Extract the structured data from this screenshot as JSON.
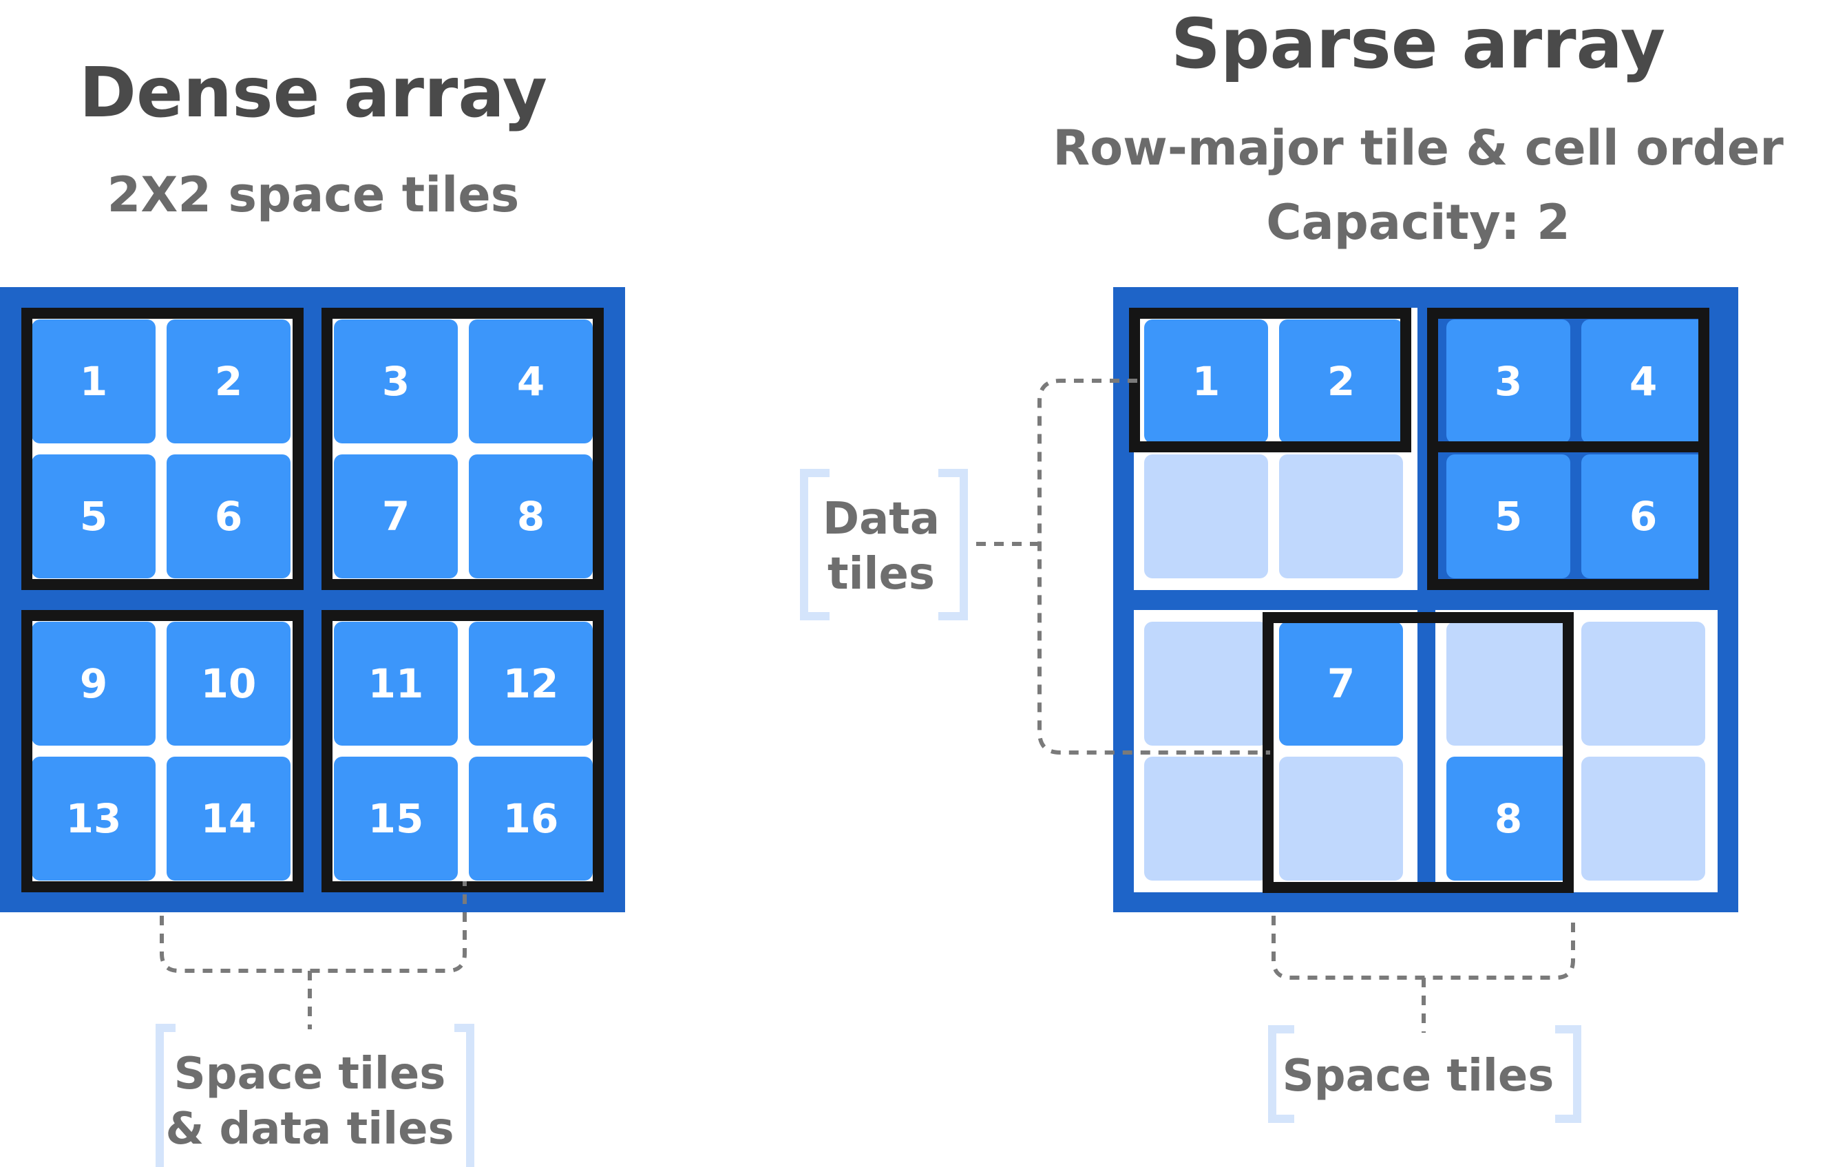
{
  "dense": {
    "title": "Dense array",
    "subtitle": "2X2 space tiles",
    "cells": [
      "1",
      "2",
      "3",
      "4",
      "5",
      "6",
      "7",
      "8",
      "9",
      "10",
      "11",
      "12",
      "13",
      "14",
      "15",
      "16"
    ],
    "callout": [
      "Space tiles",
      "& data tiles"
    ]
  },
  "sparse": {
    "title": "Sparse array",
    "subtitle_line1": "Row-major tile & cell order",
    "subtitle_line2": "Capacity: 2",
    "cells": [
      "1",
      "2",
      "3",
      "4",
      "5",
      "6",
      "7",
      "8"
    ],
    "callout_data": [
      "Data",
      "tiles"
    ],
    "callout_space": "Space tiles"
  },
  "colors": {
    "array_bg": "#1e64c8",
    "cell_filled": "#3c96fa",
    "cell_empty": "#c0d8fd",
    "tile_border": "#151515",
    "bracket": "#d4e4fb",
    "dotted": "#7a7a7a"
  }
}
